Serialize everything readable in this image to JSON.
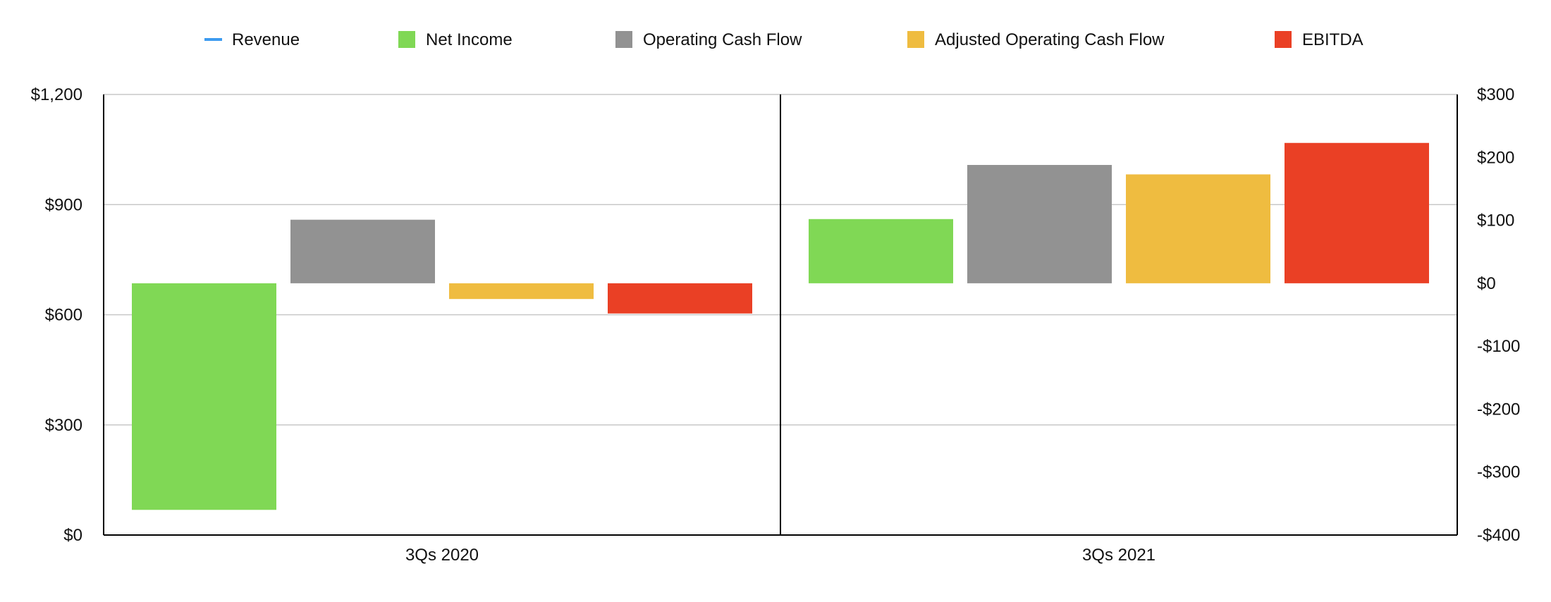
{
  "chart_data": {
    "type": "bar",
    "categories": [
      "3Qs 2020",
      "3Qs 2021"
    ],
    "series": [
      {
        "name": "Revenue",
        "axis": "left",
        "marker": "line",
        "color": "#3d9bf0",
        "values": [
          null,
          null
        ]
      },
      {
        "name": "Net Income",
        "axis": "right",
        "marker": "square",
        "color": "#80d855",
        "values": [
          -360,
          102
        ]
      },
      {
        "name": "Operating Cash Flow",
        "axis": "right",
        "marker": "square",
        "color": "#929292",
        "values": [
          101,
          188
        ]
      },
      {
        "name": "Adjusted Operating Cash Flow",
        "axis": "right",
        "marker": "square",
        "color": "#efbc40",
        "values": [
          -25,
          173
        ]
      },
      {
        "name": "EBITDA",
        "axis": "right",
        "marker": "square",
        "color": "#ea4025",
        "values": [
          -48,
          223
        ]
      }
    ],
    "y_left": {
      "ylim": [
        0,
        1200
      ],
      "ticks": [
        0,
        300,
        600,
        900,
        1200
      ],
      "tick_labels": [
        "$0",
        "$300",
        "$600",
        "$900",
        "$1,200"
      ]
    },
    "y_right": {
      "ylim": [
        -400,
        300
      ],
      "ticks": [
        -400,
        -300,
        -200,
        -100,
        0,
        100,
        200,
        300
      ],
      "tick_labels": [
        "-$400",
        "-$300",
        "-$200",
        "-$100",
        "$0",
        "$100",
        "$200",
        "$300"
      ]
    },
    "grid": true,
    "legend": "top"
  }
}
